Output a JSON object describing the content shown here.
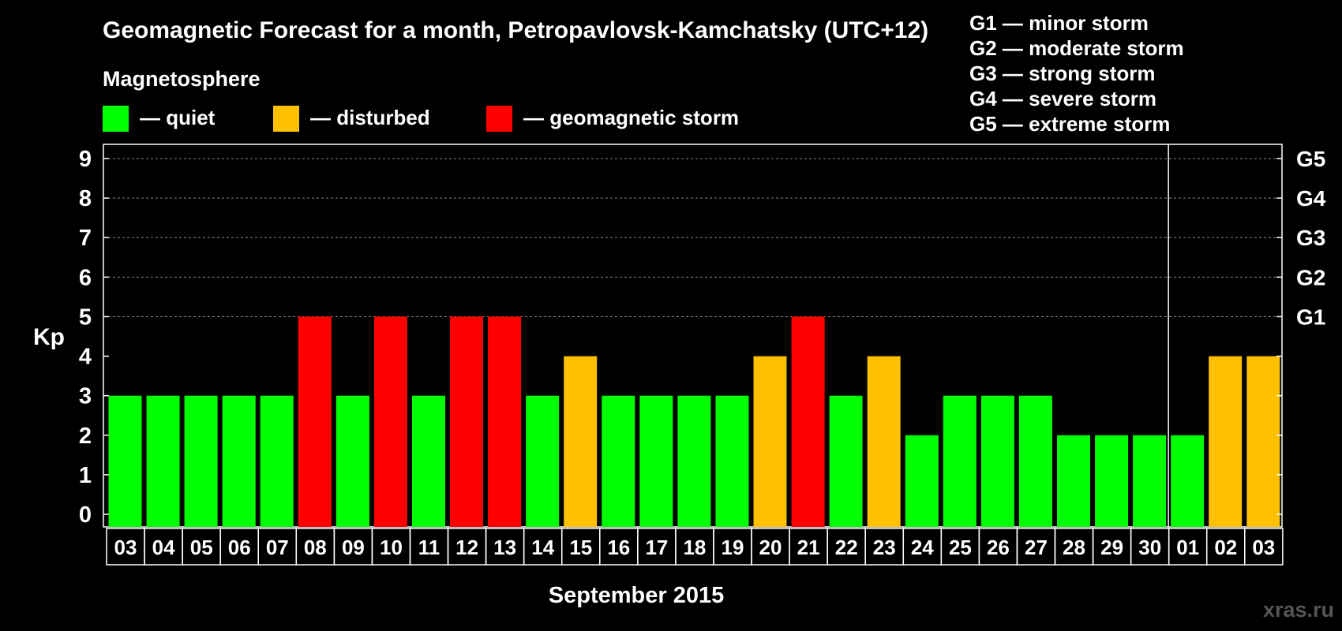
{
  "chart_data": {
    "type": "bar",
    "title": "Geomagnetic Forecast for a month, Petropavlovsk-Kamchatsky (UTC+12)",
    "subtitle": "Magnetosphere",
    "legend": [
      {
        "label": "— quiet",
        "color": "#00ff00"
      },
      {
        "label": "— disturbed",
        "color": "#ffc000"
      },
      {
        "label": "— geomagnetic storm",
        "color": "#ff0000"
      }
    ],
    "storm_scale": [
      "G1 — minor storm",
      "G2 — moderate storm",
      "G3 — strong storm",
      "G4 — severe storm",
      "G5 — extreme storm"
    ],
    "ylabel": "Kp",
    "xlabel": "September 2015",
    "ylim": [
      0,
      9
    ],
    "yticks": [
      "0",
      "1",
      "2",
      "3",
      "4",
      "5",
      "6",
      "7",
      "8",
      "9"
    ],
    "right_labels": [
      {
        "kp": 5,
        "label": "G1"
      },
      {
        "kp": 6,
        "label": "G2"
      },
      {
        "kp": 7,
        "label": "G3"
      },
      {
        "kp": 8,
        "label": "G4"
      },
      {
        "kp": 9,
        "label": "G5"
      }
    ],
    "categories": [
      "03",
      "04",
      "05",
      "06",
      "07",
      "08",
      "09",
      "10",
      "11",
      "12",
      "13",
      "14",
      "15",
      "16",
      "17",
      "18",
      "19",
      "20",
      "21",
      "22",
      "23",
      "24",
      "25",
      "26",
      "27",
      "28",
      "29",
      "30",
      "01",
      "02",
      "03"
    ],
    "values": [
      3,
      3,
      3,
      3,
      3,
      5,
      3,
      5,
      3,
      5,
      5,
      3,
      4,
      3,
      3,
      3,
      3,
      4,
      5,
      3,
      4,
      2,
      3,
      3,
      3,
      2,
      2,
      2,
      2,
      4,
      4
    ],
    "levels": [
      "quiet",
      "quiet",
      "quiet",
      "quiet",
      "quiet",
      "storm",
      "quiet",
      "storm",
      "quiet",
      "storm",
      "storm",
      "quiet",
      "disturbed",
      "quiet",
      "quiet",
      "quiet",
      "quiet",
      "disturbed",
      "storm",
      "quiet",
      "disturbed",
      "quiet",
      "quiet",
      "quiet",
      "quiet",
      "quiet",
      "quiet",
      "quiet",
      "quiet",
      "disturbed",
      "disturbed"
    ],
    "colors": {
      "quiet": "#00ff00",
      "disturbed": "#ffc000",
      "storm": "#ff0000"
    },
    "month_divider_after": "30",
    "grid": true
  },
  "watermark": "xras.ru"
}
